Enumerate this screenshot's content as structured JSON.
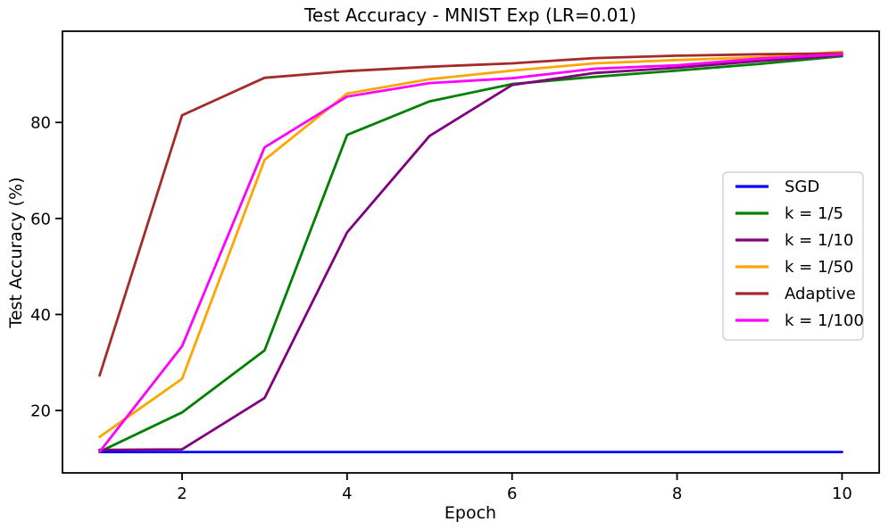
{
  "title": "Test Accuracy - MNIST Exp (LR=0.01)",
  "chart_data": {
    "type": "line",
    "title": "Test Accuracy - MNIST Exp (LR=0.01)",
    "xlabel": "Epoch",
    "ylabel": "Test Accuracy (%)",
    "x": [
      1,
      2,
      3,
      4,
      5,
      6,
      7,
      8,
      9,
      10
    ],
    "xlim": [
      0.55,
      10.45
    ],
    "ylim": [
      7,
      99
    ],
    "xticks": [
      2,
      4,
      6,
      8,
      10
    ],
    "yticks": [
      20,
      40,
      60,
      80
    ],
    "grid": false,
    "legend_position": "center right",
    "series": [
      {
        "name": "SGD",
        "color": "#0000ff",
        "values": [
          11.35,
          11.35,
          11.35,
          11.35,
          11.35,
          11.35,
          11.35,
          11.35,
          11.35,
          11.35
        ]
      },
      {
        "name": "k = 1/5",
        "color": "#008000",
        "values": [
          11.4,
          19.6,
          32.5,
          77.4,
          84.4,
          88.0,
          89.5,
          90.8,
          92.2,
          93.8
        ]
      },
      {
        "name": "k = 1/10",
        "color": "#800080",
        "values": [
          11.8,
          11.9,
          22.6,
          57.1,
          77.2,
          87.8,
          90.3,
          91.4,
          92.8,
          94.0
        ]
      },
      {
        "name": "k = 1/50",
        "color": "#ffa500",
        "values": [
          14.5,
          26.6,
          72.2,
          86.0,
          89.0,
          90.8,
          92.3,
          93.0,
          93.6,
          94.7
        ]
      },
      {
        "name": "Adaptive",
        "color": "#a52a2a",
        "values": [
          27.3,
          81.5,
          89.3,
          90.7,
          91.6,
          92.3,
          93.4,
          93.9,
          94.2,
          94.4
        ]
      },
      {
        "name": "k = 1/100",
        "color": "#ff00ff",
        "values": [
          11.4,
          33.4,
          74.8,
          85.4,
          88.2,
          89.2,
          91.2,
          91.9,
          93.3,
          94.2
        ]
      }
    ]
  }
}
